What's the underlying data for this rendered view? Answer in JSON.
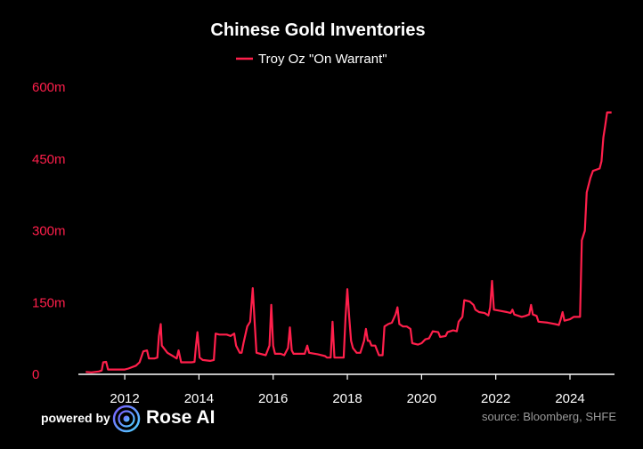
{
  "chart_data": {
    "type": "line",
    "title": "Chinese Gold Inventories",
    "legend": {
      "position": "top-center"
    },
    "series": [
      {
        "name": "Troy Oz \"On Warrant\"",
        "color": "#ff1f4b",
        "points": [
          [
            2010.95,
            5
          ],
          [
            2011.1,
            4
          ],
          [
            2011.3,
            6
          ],
          [
            2011.38,
            8
          ],
          [
            2011.42,
            25
          ],
          [
            2011.5,
            26
          ],
          [
            2011.55,
            10
          ],
          [
            2011.8,
            10
          ],
          [
            2012.0,
            10
          ],
          [
            2012.1,
            12
          ],
          [
            2012.3,
            18
          ],
          [
            2012.4,
            25
          ],
          [
            2012.5,
            48
          ],
          [
            2012.6,
            50
          ],
          [
            2012.65,
            33
          ],
          [
            2012.8,
            33
          ],
          [
            2012.88,
            35
          ],
          [
            2012.92,
            80
          ],
          [
            2012.97,
            105
          ],
          [
            2013.0,
            60
          ],
          [
            2013.15,
            45
          ],
          [
            2013.3,
            38
          ],
          [
            2013.4,
            33
          ],
          [
            2013.45,
            50
          ],
          [
            2013.52,
            25
          ],
          [
            2013.8,
            25
          ],
          [
            2013.88,
            26
          ],
          [
            2013.92,
            60
          ],
          [
            2013.96,
            88
          ],
          [
            2014.02,
            35
          ],
          [
            2014.1,
            30
          ],
          [
            2014.3,
            28
          ],
          [
            2014.4,
            30
          ],
          [
            2014.45,
            85
          ],
          [
            2014.55,
            83
          ],
          [
            2014.75,
            83
          ],
          [
            2014.85,
            80
          ],
          [
            2014.95,
            85
          ],
          [
            2015.0,
            60
          ],
          [
            2015.1,
            45
          ],
          [
            2015.15,
            45
          ],
          [
            2015.2,
            65
          ],
          [
            2015.3,
            100
          ],
          [
            2015.38,
            110
          ],
          [
            2015.45,
            180
          ],
          [
            2015.5,
            110
          ],
          [
            2015.55,
            45
          ],
          [
            2015.8,
            40
          ],
          [
            2015.9,
            60
          ],
          [
            2015.95,
            145
          ],
          [
            2016.0,
            60
          ],
          [
            2016.05,
            43
          ],
          [
            2016.2,
            43
          ],
          [
            2016.3,
            40
          ],
          [
            2016.4,
            55
          ],
          [
            2016.45,
            98
          ],
          [
            2016.5,
            50
          ],
          [
            2016.55,
            43
          ],
          [
            2016.85,
            43
          ],
          [
            2016.92,
            60
          ],
          [
            2016.97,
            45
          ],
          [
            2017.2,
            42
          ],
          [
            2017.4,
            38
          ],
          [
            2017.45,
            35
          ],
          [
            2017.55,
            35
          ],
          [
            2017.6,
            110
          ],
          [
            2017.65,
            35
          ],
          [
            2017.9,
            35
          ],
          [
            2017.95,
            120
          ],
          [
            2018.0,
            178
          ],
          [
            2018.05,
            120
          ],
          [
            2018.1,
            70
          ],
          [
            2018.15,
            55
          ],
          [
            2018.25,
            45
          ],
          [
            2018.35,
            45
          ],
          [
            2018.45,
            70
          ],
          [
            2018.5,
            95
          ],
          [
            2018.55,
            70
          ],
          [
            2018.6,
            70
          ],
          [
            2018.65,
            60
          ],
          [
            2018.75,
            60
          ],
          [
            2018.85,
            40
          ],
          [
            2018.95,
            40
          ],
          [
            2019.0,
            100
          ],
          [
            2019.1,
            105
          ],
          [
            2019.2,
            108
          ],
          [
            2019.3,
            125
          ],
          [
            2019.35,
            140
          ],
          [
            2019.4,
            105
          ],
          [
            2019.5,
            100
          ],
          [
            2019.6,
            100
          ],
          [
            2019.7,
            95
          ],
          [
            2019.75,
            65
          ],
          [
            2019.9,
            62
          ],
          [
            2020.0,
            65
          ],
          [
            2020.1,
            73
          ],
          [
            2020.2,
            75
          ],
          [
            2020.3,
            90
          ],
          [
            2020.45,
            88
          ],
          [
            2020.5,
            78
          ],
          [
            2020.65,
            80
          ],
          [
            2020.7,
            88
          ],
          [
            2020.85,
            92
          ],
          [
            2020.95,
            90
          ],
          [
            2021.0,
            110
          ],
          [
            2021.1,
            120
          ],
          [
            2021.15,
            155
          ],
          [
            2021.3,
            152
          ],
          [
            2021.4,
            145
          ],
          [
            2021.45,
            135
          ],
          [
            2021.55,
            130
          ],
          [
            2021.7,
            128
          ],
          [
            2021.8,
            123
          ],
          [
            2021.85,
            140
          ],
          [
            2021.9,
            195
          ],
          [
            2021.95,
            135
          ],
          [
            2022.1,
            133
          ],
          [
            2022.3,
            130
          ],
          [
            2022.4,
            128
          ],
          [
            2022.45,
            135
          ],
          [
            2022.5,
            125
          ],
          [
            2022.7,
            120
          ],
          [
            2022.8,
            122
          ],
          [
            2022.9,
            125
          ],
          [
            2022.95,
            145
          ],
          [
            2023.0,
            125
          ],
          [
            2023.1,
            122
          ],
          [
            2023.15,
            110
          ],
          [
            2023.4,
            108
          ],
          [
            2023.6,
            105
          ],
          [
            2023.7,
            103
          ],
          [
            2023.75,
            115
          ],
          [
            2023.8,
            130
          ],
          [
            2023.85,
            112
          ],
          [
            2024.0,
            115
          ],
          [
            2024.1,
            120
          ],
          [
            2024.2,
            120
          ],
          [
            2024.27,
            120
          ],
          [
            2024.32,
            280
          ],
          [
            2024.4,
            300
          ],
          [
            2024.45,
            380
          ],
          [
            2024.55,
            410
          ],
          [
            2024.62,
            425
          ],
          [
            2024.8,
            430
          ],
          [
            2024.85,
            445
          ],
          [
            2024.9,
            495
          ],
          [
            2024.95,
            520
          ],
          [
            2025.0,
            547
          ],
          [
            2025.12,
            547
          ]
        ]
      }
    ],
    "x_ticks": [
      2012,
      2014,
      2016,
      2018,
      2020,
      2022,
      2024
    ],
    "x_tick_labels": [
      "2012",
      "2014",
      "2016",
      "2018",
      "2020",
      "2022",
      "2024"
    ],
    "xlim": [
      2010.75,
      2025.2
    ],
    "y_ticks": [
      0,
      150,
      300,
      450,
      600
    ],
    "y_tick_labels": [
      "0",
      "150m",
      "300m",
      "450m",
      "600m"
    ],
    "ylim": [
      0,
      600
    ],
    "grid": false,
    "axis_label_color": "#ff1f4b"
  },
  "footer": {
    "powered_by": "powered by",
    "brand": "Rose AI",
    "source": "source: Bloomberg, SHFE",
    "logo_icon": "rose-ai-logo-icon"
  }
}
